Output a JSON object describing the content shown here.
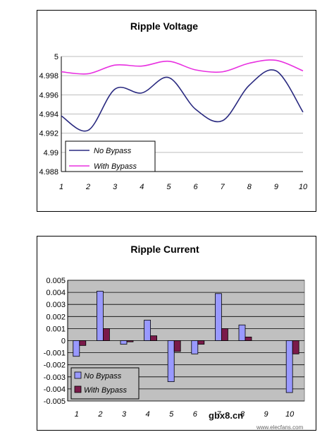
{
  "chart_data": [
    {
      "type": "line",
      "title": "Ripple Voltage",
      "xlabel": "",
      "ylabel": "",
      "x": [
        1,
        2,
        3,
        4,
        5,
        6,
        7,
        8,
        9,
        10
      ],
      "ylim": [
        4.988,
        5
      ],
      "y_ticks": [
        "5",
        "4.998",
        "4.996",
        "4.994",
        "4.992",
        "4.99",
        "4.988"
      ],
      "x_ticks": [
        "1",
        "2",
        "3",
        "4",
        "5",
        "6",
        "7",
        "8",
        "9",
        "10"
      ],
      "grid": true,
      "legend": "bottom-left",
      "series": [
        {
          "name": "No Bypass",
          "color": "#2a2a80",
          "values": [
            4.9938,
            4.9923,
            4.9966,
            4.9962,
            4.9978,
            4.9945,
            4.9933,
            4.997,
            4.9985,
            4.9942
          ]
        },
        {
          "name": "With Bypass",
          "color": "#e830e0",
          "values": [
            4.9984,
            4.9982,
            4.9991,
            4.999,
            4.9995,
            4.9986,
            4.9984,
            4.9993,
            4.9996,
            4.9985
          ]
        }
      ]
    },
    {
      "type": "bar",
      "title": "Ripple Current",
      "xlabel": "",
      "ylabel": "",
      "categories": [
        "1",
        "2",
        "3",
        "4",
        "5",
        "6",
        "7",
        "8",
        "9",
        "10"
      ],
      "ylim": [
        -0.005,
        0.005
      ],
      "y_ticks": [
        "0.005",
        "0.004",
        "0.003",
        "0.002",
        "0.001",
        "0",
        "-0.001",
        "-0.002",
        "-0.003",
        "-0.004",
        "-0.005"
      ],
      "grid": true,
      "plot_background": "#c0c0c0",
      "legend": "bottom-left",
      "series": [
        {
          "name": "No Bypass",
          "color": "#9999ff",
          "values": [
            -0.0013,
            0.0041,
            -0.0003,
            0.0017,
            -0.0034,
            -0.0011,
            0.0039,
            0.0013,
            0.0,
            -0.0043
          ]
        },
        {
          "name": "With Bypass",
          "color": "#7a1a4a",
          "values": [
            -0.0004,
            0.001,
            -0.0001,
            0.0004,
            -0.0009,
            -0.0003,
            0.001,
            0.0003,
            0.0,
            -0.0011
          ]
        }
      ]
    }
  ],
  "watermark": {
    "main": "gbx8.cn",
    "site": "www.elecfans.com"
  }
}
